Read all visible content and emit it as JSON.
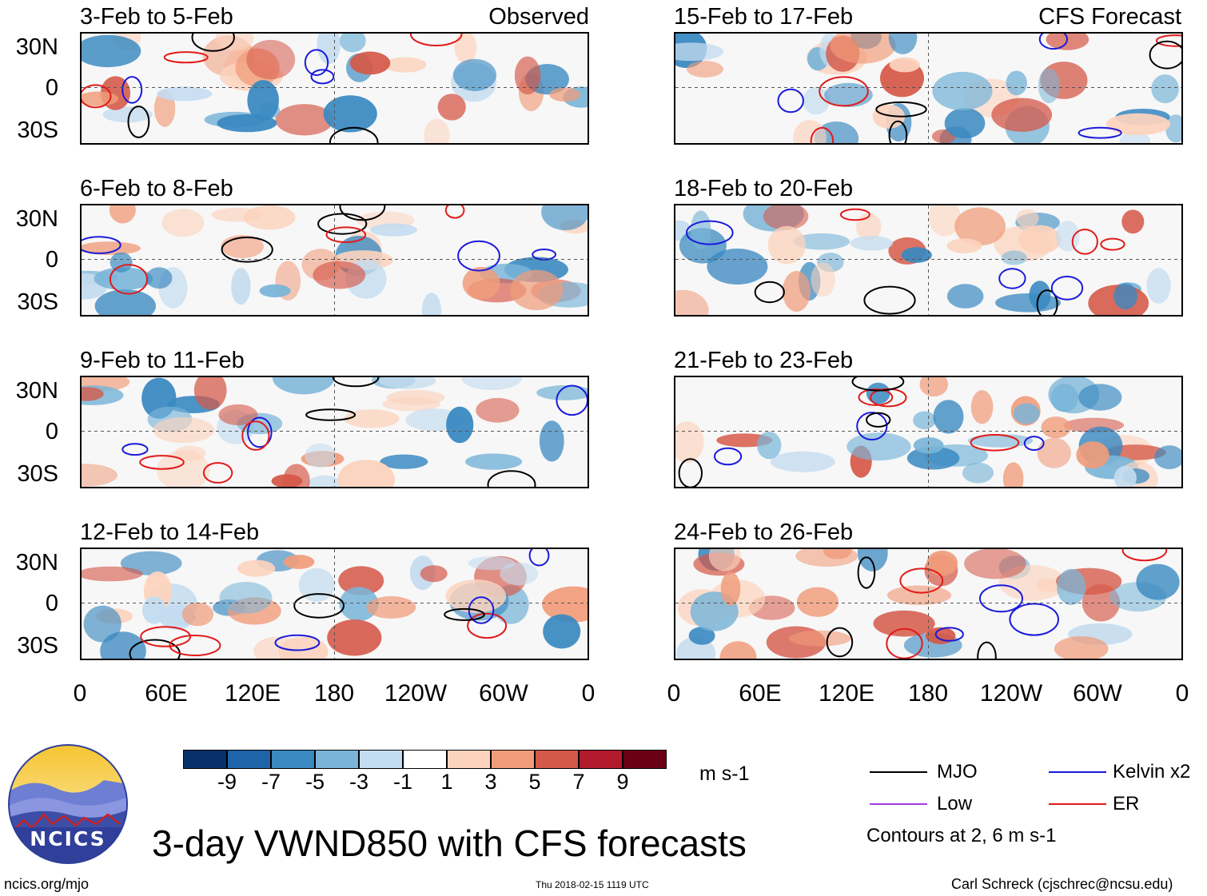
{
  "header": {
    "observed_label": "Observed",
    "forecast_label": "CFS Forecast"
  },
  "panels_left": [
    {
      "title": "3-Feb to 5-Feb"
    },
    {
      "title": "6-Feb to 8-Feb"
    },
    {
      "title": "9-Feb to 11-Feb"
    },
    {
      "title": "12-Feb to 14-Feb"
    }
  ],
  "panels_right": [
    {
      "title": "15-Feb to 17-Feb"
    },
    {
      "title": "18-Feb to 20-Feb"
    },
    {
      "title": "21-Feb to 23-Feb"
    },
    {
      "title": "24-Feb to 26-Feb"
    }
  ],
  "lat_labels": [
    "30N",
    "0",
    "30S"
  ],
  "lon_labels": [
    "0",
    "60E",
    "120E",
    "180",
    "120W",
    "60W",
    "0"
  ],
  "colorbar": {
    "unit": "m s-1",
    "ticks": [
      "-9",
      "-7",
      "-5",
      "-3",
      "-1",
      "1",
      "3",
      "5",
      "7",
      "9"
    ],
    "colors": [
      "#08306b",
      "#1f63a8",
      "#3a89c1",
      "#7ab5d8",
      "#c4dcef",
      "#ffffff",
      "#fcd3bd",
      "#f09c7b",
      "#d55848",
      "#b21a2d",
      "#6b0014"
    ]
  },
  "legend": {
    "items": [
      {
        "label": "MJO",
        "color": "#000000"
      },
      {
        "label": "Kelvin x2",
        "color": "#1a1adb"
      },
      {
        "label": "Low",
        "color": "#a23ee0"
      },
      {
        "label": "ER",
        "color": "#e21a1a"
      }
    ],
    "note": "Contours at 2, 6 m s-1"
  },
  "footer": {
    "logo_text": "NCICS",
    "main_title": "3-day VWND850 with CFS forecasts",
    "url": "ncics.org/mjo",
    "timestamp": "Thu 2018-02-15 1119 UTC",
    "credit": "Carl Schreck (cjschrec@ncsu.edu)"
  }
}
